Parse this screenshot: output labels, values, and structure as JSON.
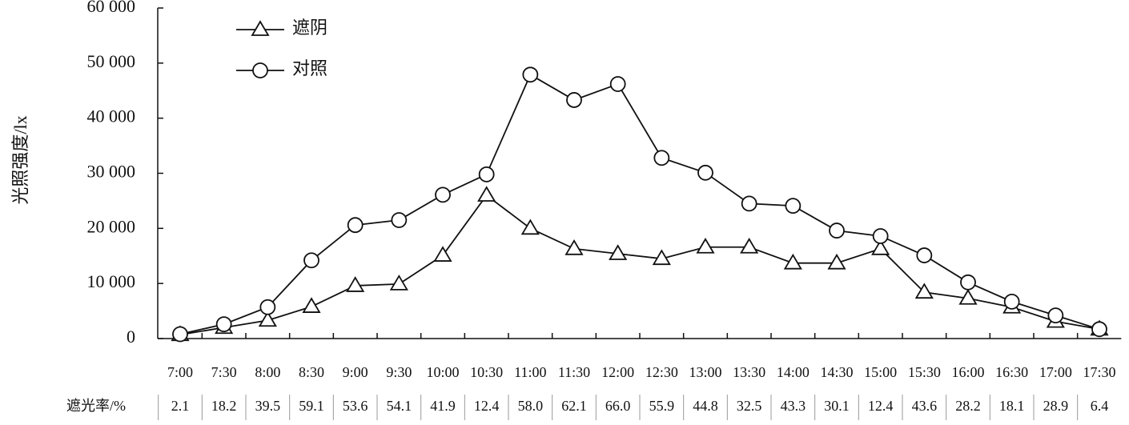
{
  "chart_data": {
    "type": "line",
    "y_label": "光照强度/lx",
    "categories": [
      "7:00",
      "7:30",
      "8:00",
      "8:30",
      "9:00",
      "9:30",
      "10:00",
      "10:30",
      "11:00",
      "11:30",
      "12:00",
      "12:30",
      "13:00",
      "13:30",
      "14:00",
      "14:30",
      "15:00",
      "15:30",
      "16:00",
      "16:30",
      "17:00",
      "17:30"
    ],
    "series": [
      {
        "name": "遮阴",
        "marker": "triangle",
        "color": "#111111",
        "values": [
          700,
          2000,
          3300,
          5800,
          9600,
          9900,
          15100,
          26000,
          20000,
          16300,
          15400,
          14500,
          16600,
          16600,
          13700,
          13700,
          16300,
          8400,
          7300,
          5700,
          3100,
          1700
        ]
      },
      {
        "name": "对照",
        "marker": "circle",
        "color": "#111111",
        "values": [
          800,
          2600,
          5700,
          14200,
          20600,
          21500,
          26100,
          29800,
          47900,
          43300,
          46200,
          32800,
          30100,
          24500,
          24100,
          19600,
          18600,
          15100,
          10200,
          6700,
          4200,
          1700
        ]
      }
    ],
    "ylim": [
      0,
      60000
    ],
    "yticks": [
      0,
      {
        "value": 10000,
        "label": "10 000"
      },
      {
        "value": 20000,
        "label": "20 000"
      },
      {
        "value": 30000,
        "label": "30 000"
      },
      {
        "value": 40000,
        "label": "40 000"
      },
      {
        "value": 50000,
        "label": "50 000"
      },
      {
        "value": 60000,
        "label": "60 000"
      }
    ],
    "legend": "top-left",
    "grid": false,
    "table_row": {
      "label": "遮光率/%",
      "values": [
        "2.1",
        "18.2",
        "39.5",
        "59.1",
        "53.6",
        "54.1",
        "41.9",
        "12.4",
        "58.0",
        "62.1",
        "66.0",
        "55.9",
        "44.8",
        "32.5",
        "43.3",
        "30.1",
        "12.4",
        "43.6",
        "28.2",
        "18.1",
        "28.9",
        "6.4"
      ]
    }
  }
}
